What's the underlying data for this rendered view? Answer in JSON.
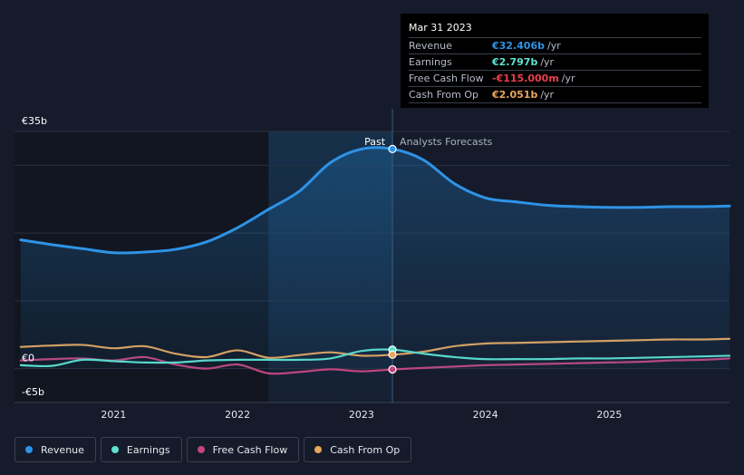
{
  "chart_data": {
    "type": "line",
    "x_label": "",
    "y_label": "",
    "y_unit": "€b",
    "ylim": [
      -5,
      35
    ],
    "xlim": [
      2020.2,
      2025.97
    ],
    "y_tick_labels": [
      {
        "value": 35,
        "label": "€35b"
      },
      {
        "value": 0,
        "label": "€0"
      },
      {
        "value": -5,
        "label": "-€5b"
      }
    ],
    "x_tick_labels": [
      {
        "value": 2021.0,
        "label": "2021"
      },
      {
        "value": 2022.0,
        "label": "2022"
      },
      {
        "value": 2023.0,
        "label": "2023"
      },
      {
        "value": 2024.0,
        "label": "2024"
      },
      {
        "value": 2025.0,
        "label": "2025"
      }
    ],
    "gridlines_y": [
      35,
      30,
      20,
      10,
      0
    ],
    "past_label": "Past",
    "forecast_label": "Analysts Forecasts",
    "present_x": 2023.25,
    "highlight_start": 2022.25,
    "series": [
      {
        "name": "Revenue",
        "color": "#2e93e6",
        "filled": true,
        "points": [
          [
            2020.25,
            19.0
          ],
          [
            2020.5,
            18.3
          ],
          [
            2020.75,
            17.7
          ],
          [
            2021.0,
            17.1
          ],
          [
            2021.25,
            17.2
          ],
          [
            2021.5,
            17.6
          ],
          [
            2021.75,
            18.7
          ],
          [
            2022.0,
            20.8
          ],
          [
            2022.25,
            23.5
          ],
          [
            2022.5,
            26.2
          ],
          [
            2022.75,
            30.4
          ],
          [
            2023.0,
            32.4
          ],
          [
            2023.25,
            32.406
          ],
          [
            2023.5,
            30.8
          ],
          [
            2023.75,
            27.3
          ],
          [
            2024.0,
            25.2
          ],
          [
            2024.25,
            24.6
          ],
          [
            2024.5,
            24.1
          ],
          [
            2024.75,
            23.9
          ],
          [
            2025.0,
            23.8
          ],
          [
            2025.25,
            23.8
          ],
          [
            2025.5,
            23.9
          ],
          [
            2025.75,
            23.9
          ],
          [
            2025.97,
            24.0
          ]
        ]
      },
      {
        "name": "Earnings",
        "color": "#5ee2cf",
        "filled": false,
        "points": [
          [
            2020.25,
            0.5
          ],
          [
            2020.5,
            0.4
          ],
          [
            2020.75,
            1.3
          ],
          [
            2021.0,
            1.1
          ],
          [
            2021.25,
            0.9
          ],
          [
            2021.5,
            0.9
          ],
          [
            2021.75,
            1.2
          ],
          [
            2022.0,
            1.3
          ],
          [
            2022.25,
            1.3
          ],
          [
            2022.5,
            1.3
          ],
          [
            2022.75,
            1.5
          ],
          [
            2023.0,
            2.6
          ],
          [
            2023.25,
            2.797
          ],
          [
            2023.5,
            2.2
          ],
          [
            2023.75,
            1.7
          ],
          [
            2024.0,
            1.4
          ],
          [
            2024.25,
            1.4
          ],
          [
            2024.5,
            1.4
          ],
          [
            2024.75,
            1.5
          ],
          [
            2025.0,
            1.5
          ],
          [
            2025.25,
            1.6
          ],
          [
            2025.5,
            1.7
          ],
          [
            2025.75,
            1.8
          ],
          [
            2025.97,
            1.9
          ]
        ]
      },
      {
        "name": "Free Cash Flow",
        "color": "#c2457f",
        "filled": false,
        "points": [
          [
            2020.25,
            1.2
          ],
          [
            2020.5,
            1.4
          ],
          [
            2020.75,
            1.5
          ],
          [
            2021.0,
            1.2
          ],
          [
            2021.25,
            1.7
          ],
          [
            2021.5,
            0.6
          ],
          [
            2021.75,
            0.0
          ],
          [
            2022.0,
            0.6
          ],
          [
            2022.25,
            -0.7
          ],
          [
            2022.5,
            -0.5
          ],
          [
            2022.75,
            -0.1
          ],
          [
            2023.0,
            -0.4
          ],
          [
            2023.25,
            -0.115
          ],
          [
            2023.5,
            0.1
          ],
          [
            2023.75,
            0.3
          ],
          [
            2024.0,
            0.5
          ],
          [
            2024.25,
            0.6
          ],
          [
            2024.5,
            0.7
          ],
          [
            2024.75,
            0.8
          ],
          [
            2025.0,
            0.9
          ],
          [
            2025.25,
            1.0
          ],
          [
            2025.5,
            1.2
          ],
          [
            2025.75,
            1.3
          ],
          [
            2025.97,
            1.5
          ]
        ]
      },
      {
        "name": "Cash From Op",
        "color": "#e9a65b",
        "filled": false,
        "points": [
          [
            2020.25,
            3.2
          ],
          [
            2020.5,
            3.4
          ],
          [
            2020.75,
            3.5
          ],
          [
            2021.0,
            3.0
          ],
          [
            2021.25,
            3.3
          ],
          [
            2021.5,
            2.2
          ],
          [
            2021.75,
            1.7
          ],
          [
            2022.0,
            2.7
          ],
          [
            2022.25,
            1.6
          ],
          [
            2022.5,
            2.0
          ],
          [
            2022.75,
            2.4
          ],
          [
            2023.0,
            1.9
          ],
          [
            2023.25,
            2.051
          ],
          [
            2023.5,
            2.5
          ],
          [
            2023.75,
            3.3
          ],
          [
            2024.0,
            3.7
          ],
          [
            2024.25,
            3.8
          ],
          [
            2024.5,
            3.9
          ],
          [
            2024.75,
            4.0
          ],
          [
            2025.0,
            4.1
          ],
          [
            2025.25,
            4.2
          ],
          [
            2025.5,
            4.3
          ],
          [
            2025.75,
            4.3
          ],
          [
            2025.97,
            4.4
          ]
        ]
      }
    ]
  },
  "tooltip": {
    "date": "Mar 31 2023",
    "rows": [
      {
        "name": "Revenue",
        "value": "€32.406b",
        "unit": "/yr",
        "color": "#2e93e6"
      },
      {
        "name": "Earnings",
        "value": "€2.797b",
        "unit": "/yr",
        "color": "#5ee2cf"
      },
      {
        "name": "Free Cash Flow",
        "value": "-€115.000m",
        "unit": "/yr",
        "color": "#e8404c"
      },
      {
        "name": "Cash From Op",
        "value": "€2.051b",
        "unit": "/yr",
        "color": "#e9a65b"
      }
    ]
  },
  "legend": {
    "items": [
      {
        "label": "Revenue",
        "color": "#2e93e6"
      },
      {
        "label": "Earnings",
        "color": "#5ee2cf"
      },
      {
        "label": "Free Cash Flow",
        "color": "#c2457f"
      },
      {
        "label": "Cash From Op",
        "color": "#e9a65b"
      }
    ]
  }
}
